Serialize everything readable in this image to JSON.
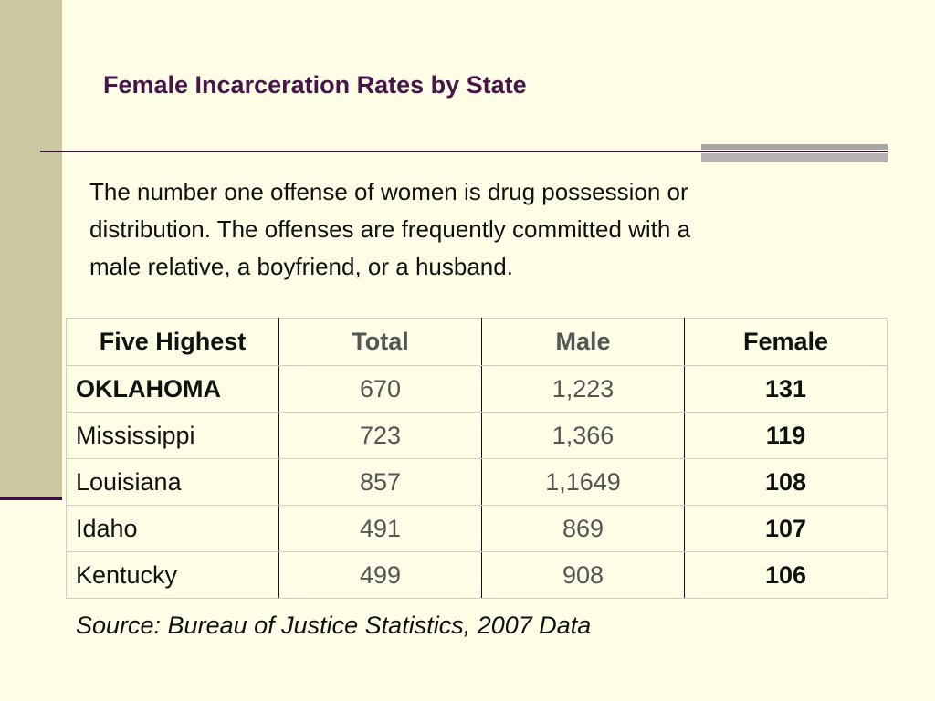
{
  "title": "Female Incarceration Rates by State",
  "body_lines": [
    "The number one offense of women is drug possession or",
    "distribution.  The offenses are frequently committed with a",
    "male relative, a boyfriend, or a husband."
  ],
  "table": {
    "headers": [
      "Five Highest",
      "Total",
      "Male",
      "Female"
    ],
    "rows": [
      [
        "OKLAHOMA",
        "670",
        "1,223",
        "131"
      ],
      [
        "Mississippi",
        "723",
        "1,366",
        "119"
      ],
      [
        "Louisiana",
        "857",
        "1,1649",
        "108"
      ],
      [
        "Idaho",
        "491",
        "869",
        "107"
      ],
      [
        "Kentucky",
        "499",
        "908",
        "106"
      ]
    ]
  },
  "source": "Source:  Bureau of Justice Statistics, 2007 Data",
  "colors": {
    "background": "#fefde6",
    "side_bar": "#cbc89f",
    "title": "#48154a",
    "rule": "#3d0f3a"
  }
}
